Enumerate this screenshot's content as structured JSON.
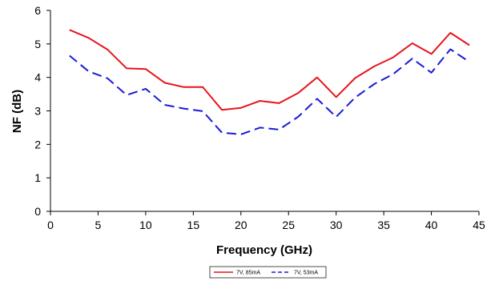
{
  "chart_data": {
    "type": "line",
    "xlabel": "Frequency (GHz)",
    "ylabel": "NF (dB)",
    "xlim": [
      0,
      45
    ],
    "ylim": [
      0,
      6
    ],
    "xticks": [
      0,
      5,
      10,
      15,
      20,
      25,
      30,
      35,
      40,
      45
    ],
    "yticks": [
      0,
      1,
      2,
      3,
      4,
      5,
      6
    ],
    "grid": false,
    "legend_position": "bottom-center",
    "series": [
      {
        "name": "7V, 85mA",
        "color": "#e8141b",
        "dash": "solid",
        "x": [
          2,
          4,
          6,
          8,
          10,
          12,
          14,
          16,
          18,
          20,
          22,
          24,
          26,
          28,
          30,
          32,
          34,
          36,
          38,
          40,
          42,
          44
        ],
        "values": [
          5.42,
          5.18,
          4.83,
          4.27,
          4.25,
          3.84,
          3.71,
          3.71,
          3.03,
          3.09,
          3.3,
          3.23,
          3.53,
          4.0,
          3.41,
          3.98,
          4.33,
          4.6,
          5.02,
          4.7,
          5.33,
          4.96
        ]
      },
      {
        "name": "7V, 53mA",
        "color": "#1a1adb",
        "dash": "dashed",
        "x": [
          2,
          4,
          6,
          8,
          10,
          12,
          14,
          16,
          18,
          20,
          22,
          24,
          26,
          28,
          30,
          32,
          34,
          36,
          38,
          40,
          42,
          44
        ],
        "values": [
          4.65,
          4.18,
          3.97,
          3.47,
          3.66,
          3.18,
          3.07,
          2.99,
          2.35,
          2.3,
          2.5,
          2.44,
          2.82,
          3.36,
          2.82,
          3.4,
          3.8,
          4.1,
          4.56,
          4.14,
          4.84,
          4.46
        ]
      }
    ]
  }
}
